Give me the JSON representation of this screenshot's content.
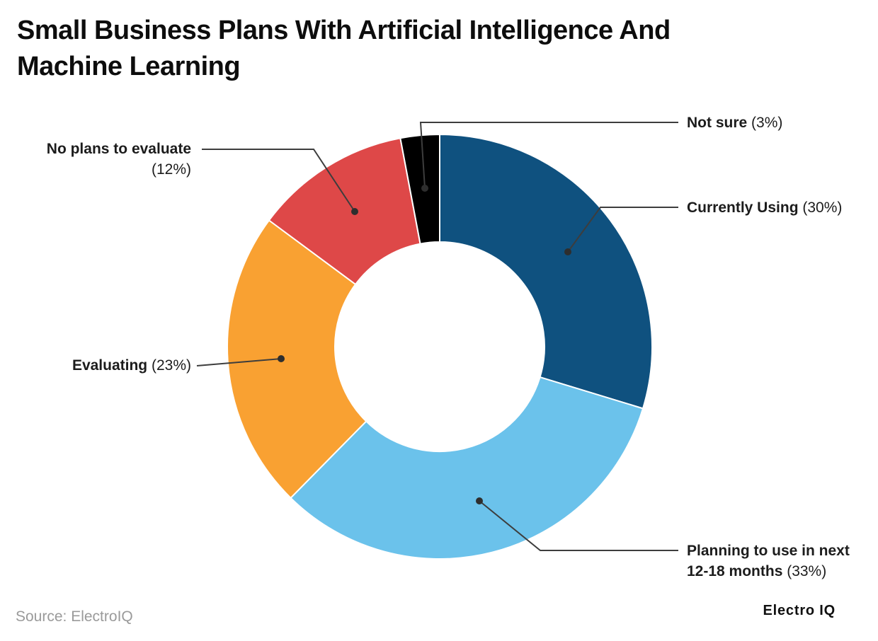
{
  "title": {
    "line1": "Small Business Plans With Artificial Intelligence And",
    "line2": "Machine Learning"
  },
  "footer": {
    "source": "Source: ElectroIQ",
    "brand": "Electro IQ"
  },
  "chart_data": {
    "type": "pie",
    "subtype": "donut",
    "title": "Small Business Plans With Artificial Intelligence And Machine Learning",
    "legend_position": "callout-labels",
    "donut_hole_ratio": 0.49,
    "start_angle_deg": 0,
    "direction": "clockwise",
    "leader_line_color": "#3d3d3d",
    "slices": [
      {
        "id": "currently-using",
        "label": "Currently Using",
        "pct": " (30%)",
        "value": 30,
        "color": "#0F517F"
      },
      {
        "id": "planning",
        "label": "Planning to use in next 12-18 months",
        "pct": " (33%)",
        "value": 33,
        "color": "#6BC2EB"
      },
      {
        "id": "evaluating",
        "label": "Evaluating",
        "pct": " (23%)",
        "value": 23,
        "color": "#F9A132"
      },
      {
        "id": "no-plans",
        "label": "No plans to evaluate",
        "pct": " (12%)",
        "value": 12,
        "color": "#DE4848"
      },
      {
        "id": "not-sure",
        "label": "Not sure",
        "pct": " (3%)",
        "value": 3,
        "color": "#000000"
      }
    ]
  }
}
